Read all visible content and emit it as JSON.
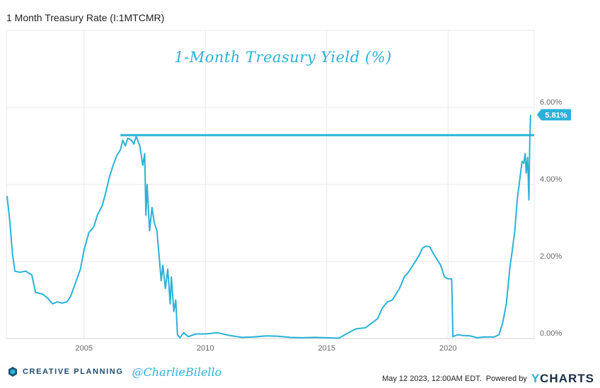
{
  "header": {
    "title": "1 Month Treasury Rate (I:1MTCMR)"
  },
  "chart_data": {
    "type": "line",
    "title": "1-Month Treasury Yield (%)",
    "x_range": [
      2001.8,
      2023.55
    ],
    "y_range": [
      0,
      8
    ],
    "x_ticks": [
      {
        "value": 2005,
        "label": "2005"
      },
      {
        "value": 2010,
        "label": "2010"
      },
      {
        "value": 2015,
        "label": "2015"
      },
      {
        "value": 2020,
        "label": "2020"
      }
    ],
    "y_ticks": [
      {
        "value": 0,
        "label": "0.00%"
      },
      {
        "value": 2,
        "label": "2.00%"
      },
      {
        "value": 4,
        "label": "4.00%"
      },
      {
        "value": 6,
        "label": "6.00%"
      }
    ],
    "grid": true,
    "reference_line": {
      "y": 5.28,
      "x_start": 2006.5
    },
    "last_value": {
      "value": 5.81,
      "label": "5.81%"
    },
    "series": [
      {
        "color": "#29b2d8",
        "points": [
          [
            2001.83,
            3.7
          ],
          [
            2001.95,
            3.0
          ],
          [
            2002.05,
            2.2
          ],
          [
            2002.15,
            1.75
          ],
          [
            2002.35,
            1.72
          ],
          [
            2002.6,
            1.75
          ],
          [
            2002.85,
            1.65
          ],
          [
            2003.0,
            1.2
          ],
          [
            2003.3,
            1.15
          ],
          [
            2003.5,
            1.05
          ],
          [
            2003.7,
            0.9
          ],
          [
            2003.9,
            0.95
          ],
          [
            2004.1,
            0.92
          ],
          [
            2004.3,
            0.95
          ],
          [
            2004.45,
            1.1
          ],
          [
            2004.65,
            1.45
          ],
          [
            2004.85,
            1.8
          ],
          [
            2005.0,
            2.3
          ],
          [
            2005.2,
            2.75
          ],
          [
            2005.4,
            2.9
          ],
          [
            2005.55,
            3.2
          ],
          [
            2005.75,
            3.45
          ],
          [
            2005.9,
            3.8
          ],
          [
            2006.05,
            4.2
          ],
          [
            2006.2,
            4.5
          ],
          [
            2006.35,
            4.75
          ],
          [
            2006.5,
            4.9
          ],
          [
            2006.6,
            5.15
          ],
          [
            2006.7,
            5.0
          ],
          [
            2006.8,
            5.2
          ],
          [
            2006.95,
            5.15
          ],
          [
            2007.05,
            5.05
          ],
          [
            2007.15,
            5.25
          ],
          [
            2007.3,
            5.0
          ],
          [
            2007.42,
            4.5
          ],
          [
            2007.5,
            4.8
          ],
          [
            2007.55,
            3.2
          ],
          [
            2007.6,
            4.0
          ],
          [
            2007.7,
            2.8
          ],
          [
            2007.8,
            3.4
          ],
          [
            2007.9,
            3.0
          ],
          [
            2008.0,
            2.8
          ],
          [
            2008.1,
            2.1
          ],
          [
            2008.18,
            1.5
          ],
          [
            2008.25,
            1.9
          ],
          [
            2008.35,
            1.3
          ],
          [
            2008.45,
            1.8
          ],
          [
            2008.55,
            0.9
          ],
          [
            2008.6,
            1.6
          ],
          [
            2008.7,
            0.7
          ],
          [
            2008.78,
            1.0
          ],
          [
            2008.85,
            0.1
          ],
          [
            2008.95,
            0.02
          ],
          [
            2009.1,
            0.15
          ],
          [
            2009.3,
            0.05
          ],
          [
            2009.6,
            0.12
          ],
          [
            2010.0,
            0.12
          ],
          [
            2010.5,
            0.15
          ],
          [
            2011.0,
            0.08
          ],
          [
            2011.5,
            0.03
          ],
          [
            2012.0,
            0.04
          ],
          [
            2012.5,
            0.07
          ],
          [
            2013.0,
            0.06
          ],
          [
            2013.5,
            0.03
          ],
          [
            2014.0,
            0.02
          ],
          [
            2014.5,
            0.03
          ],
          [
            2015.0,
            0.02
          ],
          [
            2015.5,
            0.01
          ],
          [
            2015.9,
            0.15
          ],
          [
            2016.2,
            0.25
          ],
          [
            2016.6,
            0.28
          ],
          [
            2016.9,
            0.42
          ],
          [
            2017.1,
            0.52
          ],
          [
            2017.3,
            0.8
          ],
          [
            2017.5,
            0.95
          ],
          [
            2017.7,
            1.0
          ],
          [
            2017.85,
            1.15
          ],
          [
            2018.0,
            1.3
          ],
          [
            2018.2,
            1.6
          ],
          [
            2018.4,
            1.75
          ],
          [
            2018.6,
            1.95
          ],
          [
            2018.8,
            2.15
          ],
          [
            2018.95,
            2.35
          ],
          [
            2019.1,
            2.4
          ],
          [
            2019.25,
            2.38
          ],
          [
            2019.4,
            2.2
          ],
          [
            2019.55,
            2.05
          ],
          [
            2019.7,
            1.9
          ],
          [
            2019.85,
            1.6
          ],
          [
            2020.0,
            1.55
          ],
          [
            2020.15,
            1.55
          ],
          [
            2020.2,
            0.05
          ],
          [
            2020.4,
            0.1
          ],
          [
            2020.6,
            0.08
          ],
          [
            2020.9,
            0.07
          ],
          [
            2021.2,
            0.02
          ],
          [
            2021.5,
            0.04
          ],
          [
            2021.9,
            0.04
          ],
          [
            2022.1,
            0.1
          ],
          [
            2022.25,
            0.4
          ],
          [
            2022.4,
            0.9
          ],
          [
            2022.55,
            1.85
          ],
          [
            2022.65,
            2.3
          ],
          [
            2022.75,
            2.8
          ],
          [
            2022.85,
            3.6
          ],
          [
            2022.95,
            4.1
          ],
          [
            2023.05,
            4.6
          ],
          [
            2023.12,
            4.55
          ],
          [
            2023.18,
            4.8
          ],
          [
            2023.22,
            4.3
          ],
          [
            2023.28,
            4.7
          ],
          [
            2023.33,
            3.6
          ],
          [
            2023.37,
            5.2
          ],
          [
            2023.4,
            5.81
          ]
        ]
      }
    ]
  },
  "footer": {
    "brand": "CREATIVE PLANNING",
    "handle": "@CharlieBilello",
    "timestamp": "May 12 2023, 12:00AM EDT.",
    "powered_by": "Powered by",
    "ycharts_y": "Y",
    "ycharts_rest": "CHARTS"
  },
  "colors": {
    "line": "#29b2d8",
    "brand_navy": "#1f4b6e",
    "grid": "#e8e8e8"
  }
}
